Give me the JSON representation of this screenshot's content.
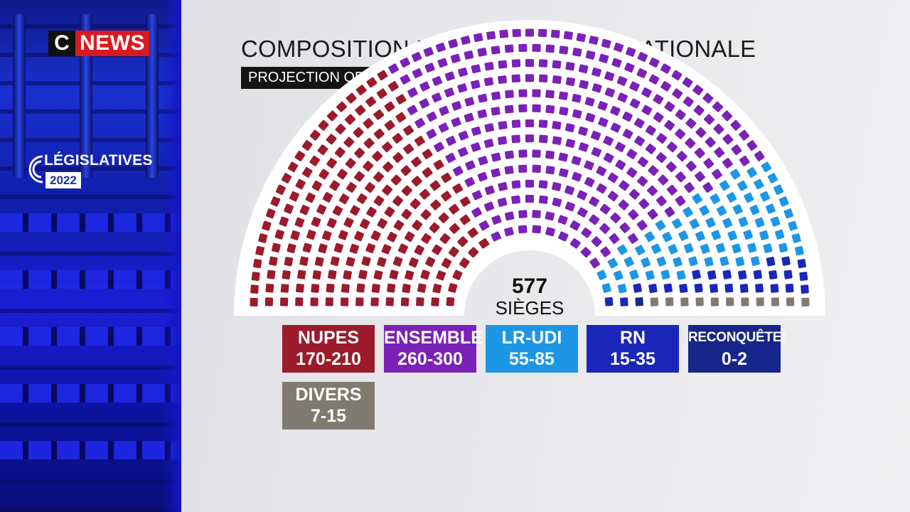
{
  "logo": {
    "c": "C",
    "news": "NEWS"
  },
  "badge": {
    "title": "LÉGISLATIVES",
    "year": "2022"
  },
  "header": {
    "title": "COMPOSITION DE L'ASSEMBLÉE NATIONALE",
    "subtitle": "PROJECTION OPINIONWAY POUR CNEWS ET EUROPE 1"
  },
  "chart_data": {
    "type": "parliament",
    "total_seats": 577,
    "total_value": "577",
    "total_label": "SIÈGES",
    "series": [
      {
        "name": "NUPES",
        "range": "170-210",
        "min": 170,
        "max": 210,
        "color": "#9b1b2b"
      },
      {
        "name": "ENSEMBLE",
        "range": "260-300",
        "min": 260,
        "max": 300,
        "color": "#7a22b8"
      },
      {
        "name": "LR-UDI",
        "range": "55-85",
        "min": 55,
        "max": 85,
        "color": "#1e96e6"
      },
      {
        "name": "RN",
        "range": "15-35",
        "min": 15,
        "max": 35,
        "color": "#1a27b8"
      },
      {
        "name": "RECONQUÊTE!",
        "range": "0-2",
        "min": 0,
        "max": 2,
        "color": "#17268a"
      },
      {
        "name": "DIVERS",
        "range": "7-15",
        "min": 7,
        "max": 15,
        "color": "#7f7b70"
      }
    ]
  }
}
